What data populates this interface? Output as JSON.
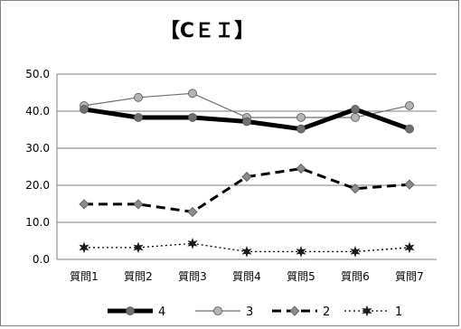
{
  "chart_data": {
    "type": "line",
    "title": "【CＥＩ】",
    "xlabel": "",
    "ylabel": "",
    "categories": [
      "質問1",
      "質問2",
      "質問3",
      "質問4",
      "質問5",
      "質問6",
      "質問7"
    ],
    "ylim": [
      0,
      50
    ],
    "yticks": [
      "0.0",
      "10.0",
      "20.0",
      "30.0",
      "40.0",
      "50.0"
    ],
    "grid": true,
    "legend_position": "bottom",
    "series": [
      {
        "name": "4",
        "values": [
          40.5,
          38.3,
          38.3,
          37.2,
          35.2,
          40.5,
          35.2
        ],
        "color": "#000000",
        "style": "thick-solid",
        "marker": "circle",
        "marker_color": "#707070"
      },
      {
        "name": "3",
        "values": [
          41.5,
          43.7,
          44.8,
          38.3,
          38.3,
          38.3,
          41.5
        ],
        "color": "#6e6e6e",
        "style": "thin-solid",
        "marker": "circle",
        "marker_color": "#b4b4b4"
      },
      {
        "name": "2",
        "values": [
          14.9,
          14.9,
          12.8,
          22.3,
          24.5,
          19.1,
          20.2
        ],
        "color": "#000000",
        "style": "dashed",
        "marker": "diamond",
        "marker_color": "#8c8c8c"
      },
      {
        "name": "1",
        "values": [
          3.2,
          3.2,
          4.3,
          2.1,
          2.1,
          2.1,
          3.2
        ],
        "color": "#000000",
        "style": "dotted",
        "marker": "star",
        "marker_color": "#1a1a1a"
      }
    ]
  }
}
